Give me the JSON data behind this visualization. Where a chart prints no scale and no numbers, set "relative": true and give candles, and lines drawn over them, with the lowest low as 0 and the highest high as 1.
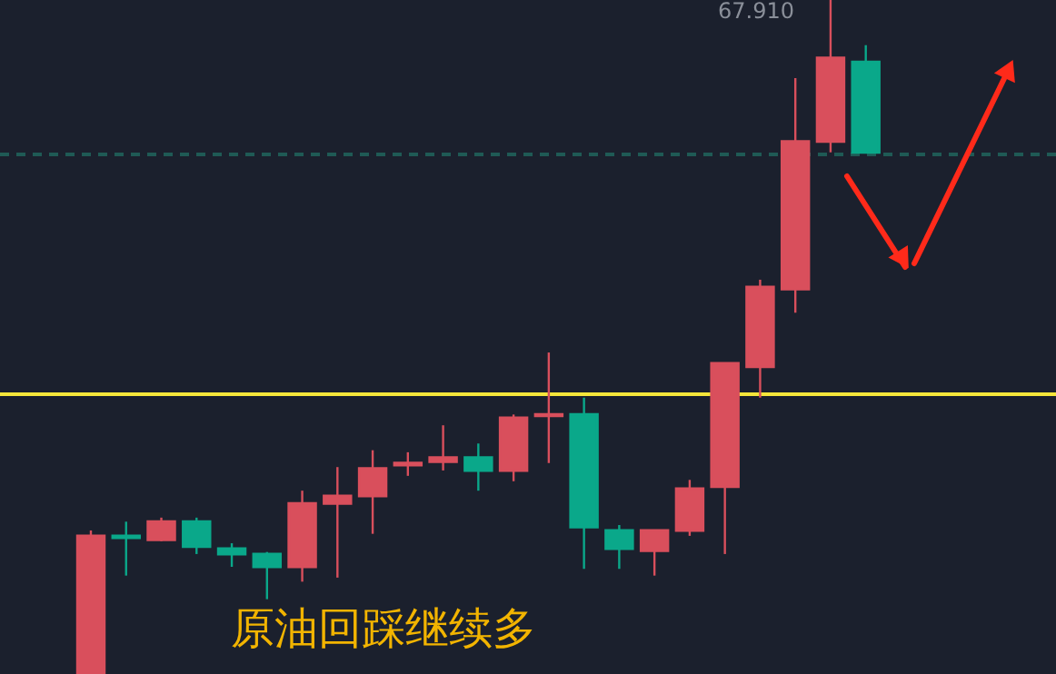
{
  "chart_data": {
    "type": "candlestick",
    "relative": true,
    "title": "原油回踩继续多",
    "annotations": [
      "67.910"
    ],
    "categories": [
      null,
      null,
      null,
      null,
      null,
      null,
      null,
      null,
      null,
      null,
      null,
      null,
      null,
      null,
      null,
      null,
      null,
      null,
      null,
      null,
      null,
      null,
      null
    ],
    "ohlc": [
      [
        0,
        0.213,
        0,
        0.205
      ],
      [
        0.205,
        0.226,
        0.146,
        0.202
      ],
      [
        0.199,
        0.232,
        0.197,
        0.226
      ],
      [
        0.226,
        0.232,
        0.178,
        0.189
      ],
      [
        0.186,
        0.194,
        0.159,
        0.178
      ],
      [
        0.178,
        0.181,
        0.111,
        0.159
      ],
      [
        0.159,
        0.272,
        0.137,
        0.253
      ],
      [
        0.253,
        0.307,
        0.143,
        0.264
      ],
      [
        0.264,
        0.332,
        0.208,
        0.305
      ],
      [
        0.31,
        0.329,
        0.294,
        0.313
      ],
      [
        0.315,
        0.369,
        0.302,
        0.321
      ],
      [
        0.321,
        0.342,
        0.272,
        0.302
      ],
      [
        0.302,
        0.385,
        0.286,
        0.38
      ],
      [
        0.383,
        0.477,
        0.313,
        0.385
      ],
      [
        0.385,
        0.41,
        0.156,
        0.218
      ],
      [
        0.213,
        0.221,
        0.156,
        0.186
      ],
      [
        0.183,
        0.213,
        0.146,
        0.213
      ],
      [
        0.213,
        0.288,
        0.205,
        0.275
      ],
      [
        0.278,
        0.461,
        0.178,
        0.461
      ],
      [
        0.456,
        0.585,
        0.41,
        0.574
      ],
      [
        0.571,
        0.884,
        0.536,
        0.79
      ],
      [
        0.79,
        1,
        0.774,
        0.914
      ],
      [
        0.908,
        0.933,
        0.774,
        0.774
      ]
    ],
    "colors": [
      "#d94f5c",
      "#0aa88a",
      "#d94f5c",
      "#0aa88a",
      "#0aa88a",
      "#0aa88a",
      "#d94f5c",
      "#d94f5c",
      "#d94f5c",
      "#d94f5c",
      "#d94f5c",
      "#0aa88a",
      "#d94f5c",
      "#d94f5c",
      "#0aa88a",
      "#0aa88a",
      "#d94f5c",
      "#d94f5c",
      "#d94f5c",
      "#d94f5c",
      "#d94f5c",
      "#d94f5c",
      "#0aa88a"
    ],
    "ref_lines": [
      {
        "axis": "y",
        "value": 0.415,
        "label": null,
        "color": "#f5e63a",
        "line_style": "solid"
      },
      {
        "axis": "y",
        "value": 0.771,
        "label": null,
        "color": "#1f5a55",
        "line_style": "dashed"
      }
    ]
  }
}
